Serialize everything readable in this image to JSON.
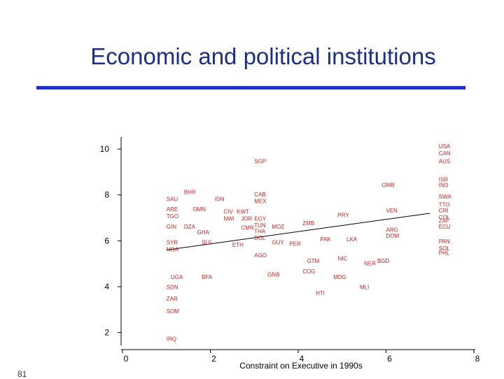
{
  "slide": {
    "title": "Economic and political institutions",
    "number": "81"
  },
  "colors": {
    "title": "#1a2f8c",
    "rule": "#1f2fd6",
    "points": "#cc2222",
    "axes": "#000000"
  },
  "chart_data": {
    "type": "scatter",
    "xlabel": "Constraint on Executive in 1990s",
    "ylabel": "",
    "xlim": [
      0,
      8
    ],
    "ylim": [
      1.5,
      10.4
    ],
    "xticks": [
      "0",
      "2",
      "4",
      "6",
      "8"
    ],
    "yticks": [
      "2",
      "4",
      "6",
      "8",
      "10"
    ],
    "grid": false,
    "legend": "none",
    "points": [
      {
        "label": "USA",
        "x": 7.2,
        "y": 10.1
      },
      {
        "label": "CAN",
        "x": 7.2,
        "y": 9.8
      },
      {
        "label": "AUS",
        "x": 7.2,
        "y": 9.45
      },
      {
        "label": "SGP",
        "x": 3.0,
        "y": 9.45
      },
      {
        "label": "ISR",
        "x": 7.2,
        "y": 8.65
      },
      {
        "label": "IND",
        "x": 7.2,
        "y": 8.4
      },
      {
        "label": "GMB",
        "x": 5.9,
        "y": 8.4
      },
      {
        "label": "BHR",
        "x": 1.4,
        "y": 8.1
      },
      {
        "label": "SAU",
        "x": 1.0,
        "y": 7.8
      },
      {
        "label": "IDN",
        "x": 2.1,
        "y": 7.8
      },
      {
        "label": "CAB",
        "x": 3.0,
        "y": 8.0
      },
      {
        "label": "MEX",
        "x": 3.0,
        "y": 7.7
      },
      {
        "label": "SWA",
        "x": 7.2,
        "y": 7.9
      },
      {
        "label": "TTO",
        "x": 7.2,
        "y": 7.55
      },
      {
        "label": "ARE",
        "x": 1.0,
        "y": 7.35
      },
      {
        "label": "TGO",
        "x": 1.0,
        "y": 7.05
      },
      {
        "label": "OMN",
        "x": 1.6,
        "y": 7.35
      },
      {
        "label": "CIV",
        "x": 2.3,
        "y": 7.25
      },
      {
        "label": "KWT",
        "x": 2.6,
        "y": 7.25
      },
      {
        "label": "NWI",
        "x": 2.3,
        "y": 6.95
      },
      {
        "label": "JOR",
        "x": 2.7,
        "y": 6.95
      },
      {
        "label": "EGY",
        "x": 3.0,
        "y": 6.95
      },
      {
        "label": "PRY",
        "x": 4.9,
        "y": 7.1
      },
      {
        "label": "VEN",
        "x": 6.0,
        "y": 7.3
      },
      {
        "label": "CRI",
        "x": 7.2,
        "y": 7.3
      },
      {
        "label": "COL",
        "x": 7.2,
        "y": 7.0
      },
      {
        "label": "ZAF",
        "x": 7.2,
        "y": 6.85
      },
      {
        "label": "GIN",
        "x": 1.0,
        "y": 6.6
      },
      {
        "label": "DZA",
        "x": 1.4,
        "y": 6.6
      },
      {
        "label": "CMR",
        "x": 2.7,
        "y": 6.55
      },
      {
        "label": "TUN",
        "x": 3.0,
        "y": 6.65
      },
      {
        "label": "MOZ",
        "x": 3.4,
        "y": 6.6
      },
      {
        "label": "ZMB",
        "x": 4.1,
        "y": 6.75
      },
      {
        "label": "GHA",
        "x": 1.7,
        "y": 6.35
      },
      {
        "label": "THA",
        "x": 3.0,
        "y": 6.4
      },
      {
        "label": "ARG",
        "x": 6.0,
        "y": 6.45
      },
      {
        "label": "DOM",
        "x": 6.0,
        "y": 6.2
      },
      {
        "label": "ECU",
        "x": 7.2,
        "y": 6.6
      },
      {
        "label": "SYR",
        "x": 1.0,
        "y": 5.9
      },
      {
        "label": "NGA",
        "x": 1.0,
        "y": 5.6
      },
      {
        "label": "SLE",
        "x": 1.8,
        "y": 5.9
      },
      {
        "label": "ETH",
        "x": 2.5,
        "y": 5.8
      },
      {
        "label": "BOL",
        "x": 3.0,
        "y": 6.1
      },
      {
        "label": "GUY",
        "x": 3.4,
        "y": 5.9
      },
      {
        "label": "PER",
        "x": 3.8,
        "y": 5.85
      },
      {
        "label": "PAK",
        "x": 4.5,
        "y": 6.05
      },
      {
        "label": "LKA",
        "x": 5.1,
        "y": 6.05
      },
      {
        "label": "PAN",
        "x": 7.2,
        "y": 5.95
      },
      {
        "label": "SOL",
        "x": 7.2,
        "y": 5.65
      },
      {
        "label": "PHL",
        "x": 7.2,
        "y": 5.45
      },
      {
        "label": "AGO",
        "x": 3.0,
        "y": 5.35
      },
      {
        "label": "NIC",
        "x": 4.9,
        "y": 5.2
      },
      {
        "label": "GTM",
        "x": 4.2,
        "y": 5.1
      },
      {
        "label": "BGD",
        "x": 5.8,
        "y": 5.1
      },
      {
        "label": "NER",
        "x": 5.5,
        "y": 5.0
      },
      {
        "label": "COG",
        "x": 4.1,
        "y": 4.65
      },
      {
        "label": "GNB",
        "x": 3.3,
        "y": 4.5
      },
      {
        "label": "UGA",
        "x": 1.1,
        "y": 4.4
      },
      {
        "label": "BFA",
        "x": 1.8,
        "y": 4.4
      },
      {
        "label": "MDG",
        "x": 4.8,
        "y": 4.4
      },
      {
        "label": "SDN",
        "x": 1.0,
        "y": 3.95
      },
      {
        "label": "MLI",
        "x": 5.4,
        "y": 3.95
      },
      {
        "label": "HTI",
        "x": 4.4,
        "y": 3.7
      },
      {
        "label": "ZAR",
        "x": 1.0,
        "y": 3.45
      },
      {
        "label": "SOM",
        "x": 1.0,
        "y": 2.9
      },
      {
        "label": "IRQ",
        "x": 1.0,
        "y": 1.7
      }
    ],
    "fit_line": [
      {
        "x": 1,
        "y": 5.6
      },
      {
        "x": 7,
        "y": 7.2
      }
    ]
  }
}
